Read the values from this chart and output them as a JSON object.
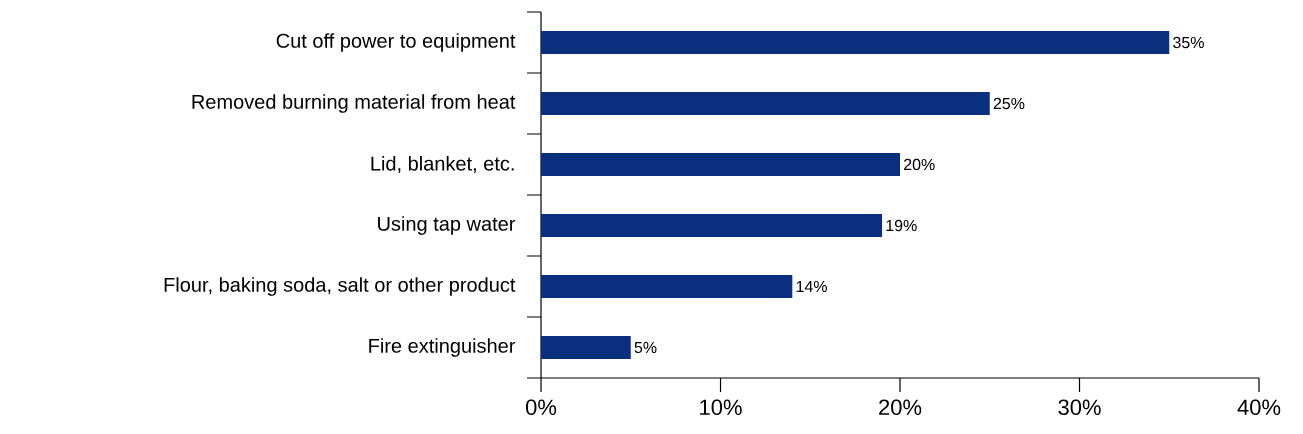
{
  "chart_data": {
    "type": "bar",
    "orientation": "horizontal",
    "categories": [
      "Cut off power to equipment",
      "Removed burning material from heat",
      "Lid, blanket, etc.",
      "Using tap water",
      "Flour, baking soda, salt or other product",
      "Fire extinguisher"
    ],
    "values": [
      35,
      25,
      20,
      19,
      14,
      5
    ],
    "value_labels": [
      "35%",
      "25%",
      "20%",
      "19%",
      "14%",
      "5%"
    ],
    "color": "#0a2f7f",
    "xlim": [
      0,
      40
    ],
    "xticks": [
      {
        "value": 0,
        "label": "0%"
      },
      {
        "value": 10,
        "label": "10%"
      },
      {
        "value": 20,
        "label": "20%"
      },
      {
        "value": 30,
        "label": "30%"
      },
      {
        "value": 40,
        "label": "40%"
      }
    ],
    "grid": false
  }
}
